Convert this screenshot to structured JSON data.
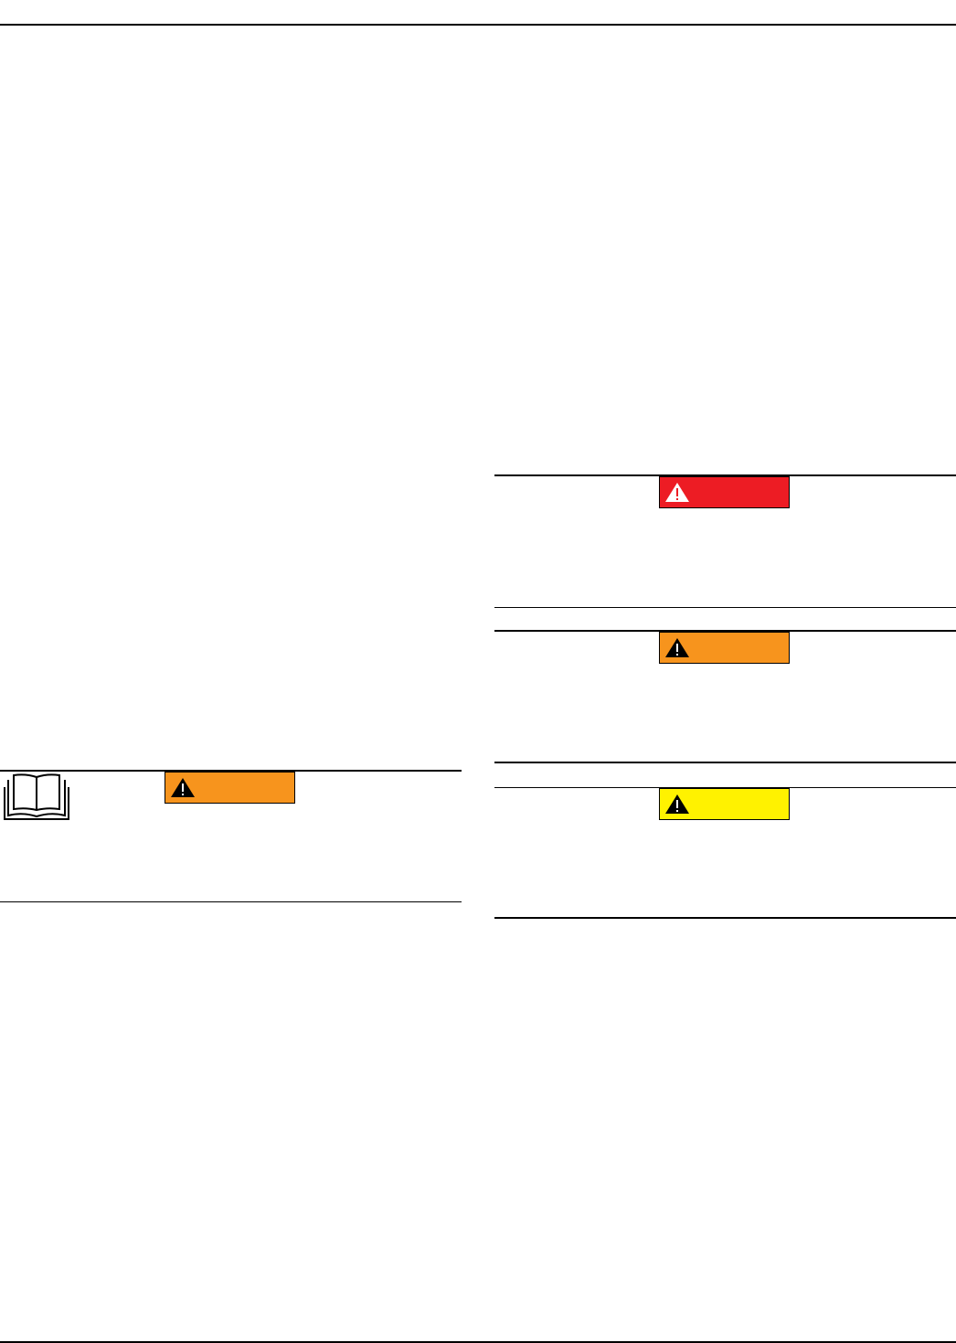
{
  "colors": {
    "danger": "#ED1C24",
    "warning": "#F7941D",
    "caution": "#FFF200",
    "rule": "#000000"
  },
  "icons": {
    "manual": "open-book-icon",
    "alert": "warning-triangle-icon"
  }
}
